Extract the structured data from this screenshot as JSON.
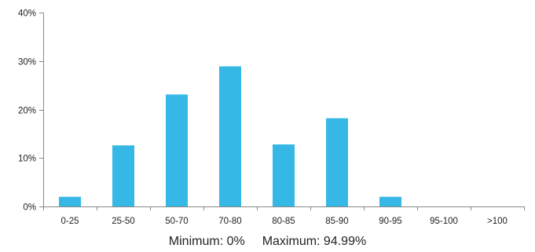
{
  "chart_data": {
    "type": "bar",
    "categories": [
      "0-25",
      "25-50",
      "50-70",
      "70-80",
      "80-85",
      "85-90",
      "90-95",
      "95-100",
      ">100"
    ],
    "values": [
      2,
      12.6,
      23.1,
      28.9,
      12.8,
      18.2,
      2,
      0,
      0
    ],
    "ylim": [
      0,
      40
    ],
    "yticks": [
      0,
      10,
      20,
      30,
      40
    ],
    "ytick_labels": [
      "0%",
      "10%",
      "20%",
      "30%",
      "40%"
    ],
    "title": "",
    "xlabel": "",
    "ylabel": "",
    "grid": false,
    "bar_color": "#35b8e6",
    "axis_color": "#888888"
  },
  "caption": {
    "minimum": "Minimum: 0%",
    "maximum": "Maximum: 94.99%"
  }
}
